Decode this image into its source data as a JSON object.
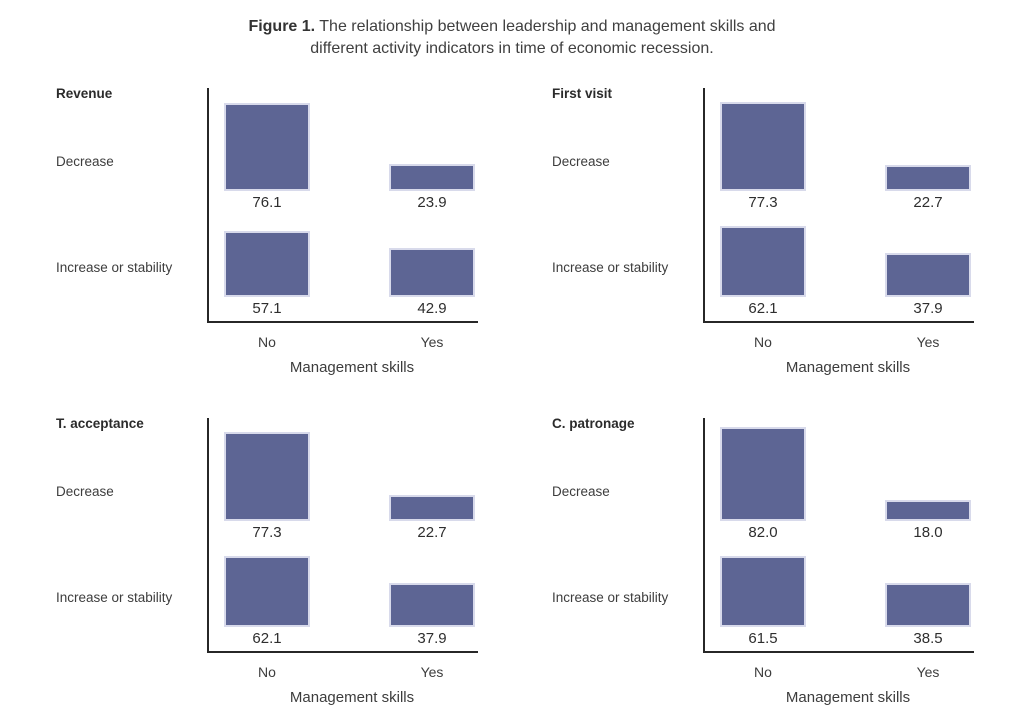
{
  "title": {
    "prefix": "Figure 1.",
    "line1": " The relationship between leadership and management skills and",
    "line2": "different activity indicators in time of economic recession."
  },
  "colors": {
    "bar_fill": "#5d6594",
    "bar_border": "#d8daeb",
    "axis": "#272727",
    "text": "#3f3f3f"
  },
  "chart_data": [
    {
      "type": "bar",
      "title": "Revenue",
      "categories": [
        "No",
        "Yes"
      ],
      "xlabel": "Management skills",
      "value_range": [
        0,
        100
      ],
      "rows": [
        {
          "label": "Decrease",
          "values": [
            76.1,
            23.9
          ],
          "value_labels": [
            "76.1",
            "23.9"
          ]
        },
        {
          "label": "Increase or stability",
          "values": [
            57.1,
            42.9
          ],
          "value_labels": [
            "57.1",
            "42.9"
          ]
        }
      ]
    },
    {
      "type": "bar",
      "title": "First visit",
      "categories": [
        "No",
        "Yes"
      ],
      "xlabel": "Management skills",
      "value_range": [
        0,
        100
      ],
      "rows": [
        {
          "label": "Decrease",
          "values": [
            77.3,
            22.7
          ],
          "value_labels": [
            "77.3",
            "22.7"
          ]
        },
        {
          "label": "Increase or stability",
          "values": [
            62.1,
            37.9
          ],
          "value_labels": [
            "62.1",
            "37.9"
          ]
        }
      ]
    },
    {
      "type": "bar",
      "title": "T. acceptance",
      "categories": [
        "No",
        "Yes"
      ],
      "xlabel": "Management skills",
      "value_range": [
        0,
        100
      ],
      "rows": [
        {
          "label": "Decrease",
          "values": [
            77.3,
            22.7
          ],
          "value_labels": [
            "77.3",
            "22.7"
          ]
        },
        {
          "label": "Increase or stability",
          "values": [
            62.1,
            37.9
          ],
          "value_labels": [
            "62.1",
            "37.9"
          ]
        }
      ]
    },
    {
      "type": "bar",
      "title": "C. patronage",
      "categories": [
        "No",
        "Yes"
      ],
      "xlabel": "Management skills",
      "value_range": [
        0,
        100
      ],
      "rows": [
        {
          "label": "Decrease",
          "values": [
            82.0,
            18.0
          ],
          "value_labels": [
            "82.0",
            "18.0"
          ]
        },
        {
          "label": "Increase or stability",
          "values": [
            61.5,
            38.5
          ],
          "value_labels": [
            "61.5",
            "38.5"
          ]
        }
      ]
    }
  ]
}
